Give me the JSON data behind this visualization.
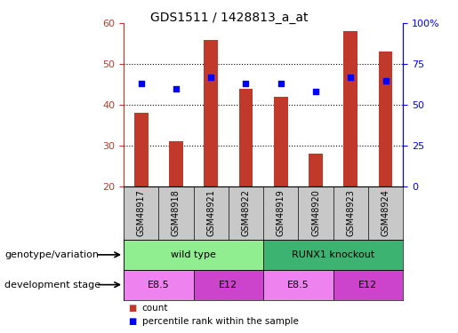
{
  "title": "GDS1511 / 1428813_a_at",
  "samples": [
    "GSM48917",
    "GSM48918",
    "GSM48921",
    "GSM48922",
    "GSM48919",
    "GSM48920",
    "GSM48923",
    "GSM48924"
  ],
  "counts": [
    38,
    31,
    56,
    44,
    42,
    28,
    58,
    53
  ],
  "percentiles": [
    63,
    60,
    67,
    63,
    63,
    58,
    67,
    65
  ],
  "ylim_left": [
    20,
    60
  ],
  "ylim_right": [
    0,
    100
  ],
  "yticks_left": [
    20,
    30,
    40,
    50,
    60
  ],
  "yticks_right": [
    0,
    25,
    50,
    75,
    100
  ],
  "yticklabels_right": [
    "0",
    "25",
    "50",
    "75",
    "100%"
  ],
  "bar_color": "#C0392B",
  "scatter_color": "#0000FF",
  "tick_label_color_left": "#C0392B",
  "tick_label_color_right": "#0000FF",
  "genotype_groups": [
    {
      "label": "wild type",
      "start": 0,
      "end": 4,
      "color": "#90EE90"
    },
    {
      "label": "RUNX1 knockout",
      "start": 4,
      "end": 8,
      "color": "#3CB371"
    }
  ],
  "stage_groups": [
    {
      "label": "E8.5",
      "start": 0,
      "end": 2,
      "color": "#EE82EE"
    },
    {
      "label": "E12",
      "start": 2,
      "end": 4,
      "color": "#CC44CC"
    },
    {
      "label": "E8.5",
      "start": 4,
      "end": 6,
      "color": "#EE82EE"
    },
    {
      "label": "E12",
      "start": 6,
      "end": 8,
      "color": "#CC44CC"
    }
  ],
  "sample_bg_color": "#C8C8C8",
  "legend_count_label": "count",
  "legend_percentile_label": "percentile rank within the sample",
  "genotype_label": "genotype/variation",
  "stage_label": "development stage"
}
